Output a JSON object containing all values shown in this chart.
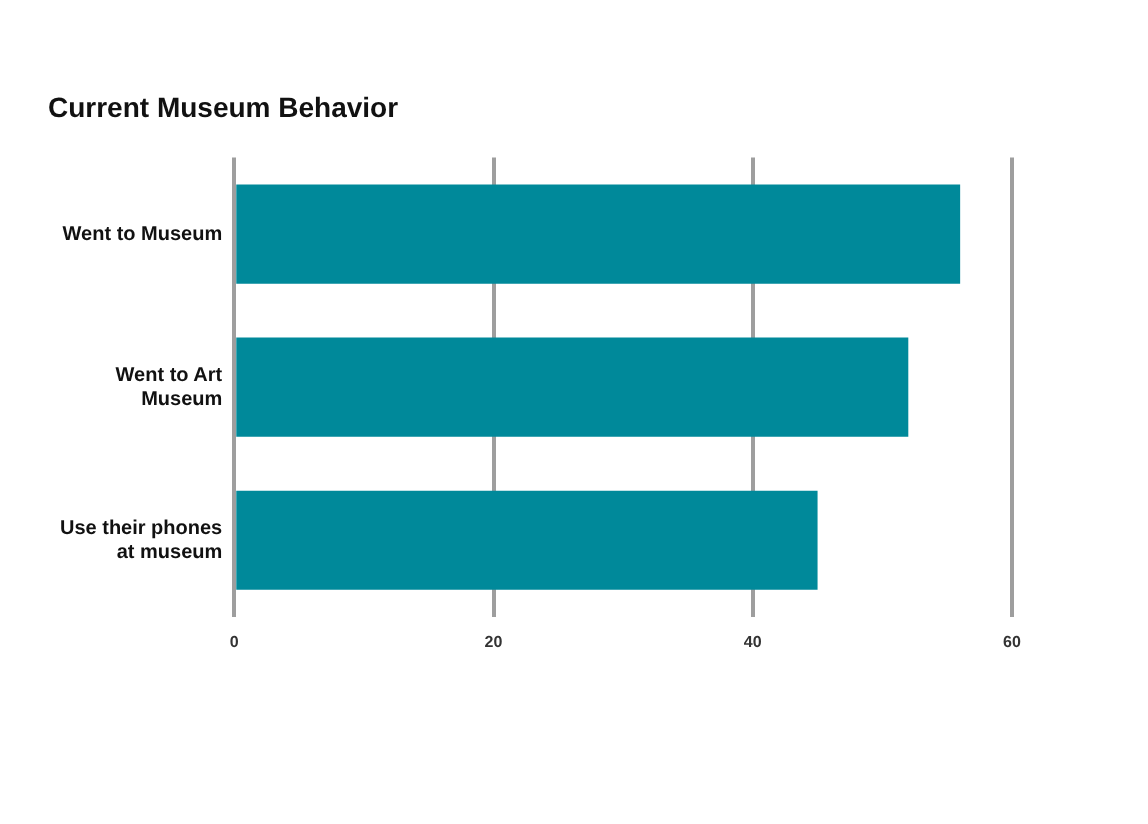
{
  "chart_data": {
    "type": "bar",
    "title": "Current Museum Behavior",
    "orientation": "horizontal",
    "categories": [
      "Went to Museum",
      "Went to Art Museum",
      "Use their phones at museum"
    ],
    "values": [
      56,
      52,
      45
    ],
    "color": "#00899a",
    "xlim": [
      0,
      60
    ],
    "xticks": [
      0,
      20,
      40,
      60
    ],
    "grid": "x"
  }
}
